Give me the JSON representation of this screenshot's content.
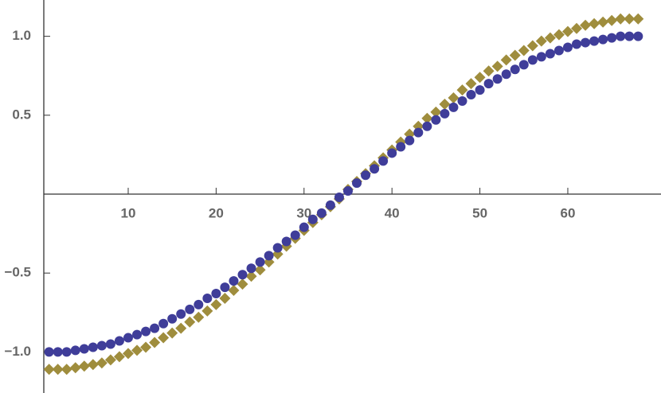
{
  "chart_data": {
    "type": "scatter",
    "x": [
      1,
      2,
      3,
      4,
      5,
      6,
      7,
      8,
      9,
      10,
      11,
      12,
      13,
      14,
      15,
      16,
      17,
      18,
      19,
      20,
      21,
      22,
      23,
      24,
      25,
      26,
      27,
      28,
      29,
      30,
      31,
      32,
      33,
      34,
      35,
      36,
      37,
      38,
      39,
      40,
      41,
      42,
      43,
      44,
      45,
      46,
      47,
      48,
      49,
      50,
      51,
      52,
      53,
      54,
      55,
      56,
      57,
      58,
      59,
      60,
      61,
      62,
      63,
      64,
      65,
      66,
      67,
      68
    ],
    "series": [
      {
        "color": "#9f8d3d",
        "marker": "diamond",
        "values": [
          -1.11,
          -1.11,
          -1.11,
          -1.1,
          -1.09,
          -1.08,
          -1.07,
          -1.05,
          -1.03,
          -1.01,
          -0.99,
          -0.97,
          -0.94,
          -0.91,
          -0.88,
          -0.85,
          -0.81,
          -0.78,
          -0.74,
          -0.7,
          -0.66,
          -0.61,
          -0.57,
          -0.52,
          -0.48,
          -0.43,
          -0.38,
          -0.33,
          -0.28,
          -0.23,
          -0.18,
          -0.13,
          -0.08,
          -0.03,
          0.03,
          0.08,
          0.13,
          0.18,
          0.23,
          0.28,
          0.33,
          0.38,
          0.43,
          0.48,
          0.52,
          0.57,
          0.61,
          0.66,
          0.7,
          0.74,
          0.78,
          0.81,
          0.85,
          0.88,
          0.91,
          0.94,
          0.97,
          0.99,
          1.01,
          1.03,
          1.05,
          1.07,
          1.08,
          1.09,
          1.1,
          1.11,
          1.11,
          1.11
        ]
      },
      {
        "color": "#3f3d99",
        "marker": "circle",
        "values": [
          -1.0,
          -1.0,
          -1.0,
          -0.99,
          -0.98,
          -0.97,
          -0.96,
          -0.95,
          -0.93,
          -0.91,
          -0.89,
          -0.87,
          -0.85,
          -0.82,
          -0.79,
          -0.76,
          -0.73,
          -0.7,
          -0.66,
          -0.63,
          -0.59,
          -0.55,
          -0.51,
          -0.47,
          -0.43,
          -0.39,
          -0.34,
          -0.3,
          -0.26,
          -0.21,
          -0.16,
          -0.12,
          -0.07,
          -0.02,
          0.02,
          0.07,
          0.12,
          0.16,
          0.21,
          0.26,
          0.3,
          0.34,
          0.39,
          0.43,
          0.47,
          0.51,
          0.55,
          0.59,
          0.63,
          0.66,
          0.7,
          0.73,
          0.76,
          0.79,
          0.82,
          0.85,
          0.87,
          0.89,
          0.91,
          0.93,
          0.95,
          0.96,
          0.97,
          0.98,
          0.99,
          1.0,
          1.0,
          1.0
        ]
      }
    ],
    "xlim": [
      0.4,
      70.6
    ],
    "ylim": [
      -1.26,
      1.23
    ],
    "xticks": [
      10,
      20,
      30,
      40,
      50,
      60
    ],
    "yticks": [
      {
        "value": -1,
        "label": "−1.0"
      },
      {
        "value": -0.5,
        "label": "−0.5"
      },
      {
        "value": 0.5,
        "label": "0.5"
      },
      {
        "value": 1,
        "label": "1.0"
      }
    ]
  }
}
